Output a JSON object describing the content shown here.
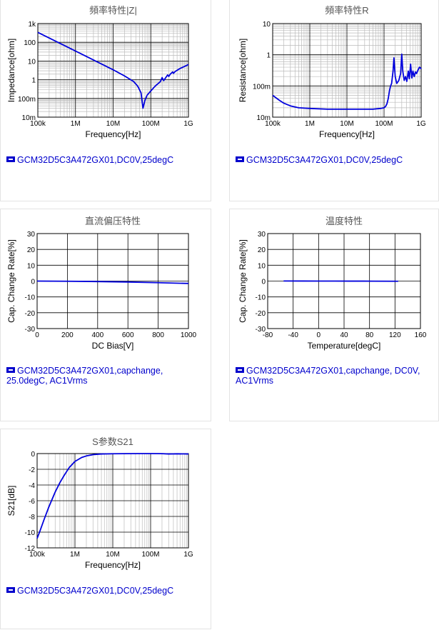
{
  "colors": {
    "series": "#0000dd",
    "grid_major": "#000000",
    "grid_minor": "#bbbbbb",
    "legend": "#0000cc"
  },
  "chart_data": [
    {
      "type": "line",
      "title": "頻率特性|Z|",
      "xlabel": "Frequency[Hz]",
      "ylabel": "Impedance[ohm]",
      "xscale": "log",
      "yscale": "log",
      "xlim": [
        100000,
        1000000000
      ],
      "ylim": [
        0.01,
        1000
      ],
      "xticks": [
        100000,
        1000000,
        10000000,
        100000000,
        1000000000
      ],
      "xticklabels": [
        "100k",
        "1M",
        "10M",
        "100M",
        "1G"
      ],
      "yticks": [
        0.01,
        0.1,
        1,
        10,
        100,
        1000
      ],
      "yticklabels": [
        "10m",
        "100m",
        "1",
        "10",
        "100",
        "1k"
      ],
      "grid": true,
      "legend": "GCM32D5C3A472GX01,DC0V,25degC",
      "series": [
        {
          "name": "GCM32D5C3A472GX01,DC0V,25degC",
          "x": [
            100000,
            200000,
            500000,
            1000000,
            2000000,
            5000000,
            10000000,
            20000000,
            35000000,
            45000000,
            55000000,
            62000000,
            70000000,
            80000000,
            100000000,
            130000000,
            180000000,
            200000000,
            220000000,
            250000000,
            280000000,
            300000000,
            330000000,
            380000000,
            400000000,
            450000000,
            500000000,
            600000000,
            700000000,
            850000000,
            1000000000
          ],
          "y": [
            340,
            170,
            68,
            34,
            17,
            6.8,
            3.4,
            1.6,
            0.8,
            0.45,
            0.2,
            0.03,
            0.08,
            0.15,
            0.25,
            0.45,
            0.8,
            1.3,
            0.9,
            1.3,
            1.8,
            1.5,
            2.0,
            2.6,
            2.2,
            2.8,
            3.2,
            4.0,
            4.6,
            5.5,
            6.5
          ]
        }
      ]
    },
    {
      "type": "line",
      "title": "頻率特性R",
      "xlabel": "Frequency[Hz]",
      "ylabel": "Resistance[ohm]",
      "xscale": "log",
      "yscale": "log",
      "xlim": [
        100000,
        1000000000
      ],
      "ylim": [
        0.01,
        10
      ],
      "xticks": [
        100000,
        1000000,
        10000000,
        100000000,
        1000000000
      ],
      "xticklabels": [
        "100k",
        "1M",
        "10M",
        "100M",
        "1G"
      ],
      "yticks": [
        0.01,
        0.1,
        1,
        10
      ],
      "yticklabels": [
        "10m",
        "100m",
        "1",
        "10"
      ],
      "grid": true,
      "legend": "GCM32D5C3A472GX01,DC0V,25degC",
      "series": [
        {
          "name": "GCM32D5C3A472GX01,DC0V,25degC",
          "x": [
            100000,
            150000,
            200000,
            300000,
            500000,
            1000000,
            3000000,
            10000000,
            50000000,
            80000000,
            100000000,
            110000000,
            120000000,
            130000000,
            140000000,
            150000000,
            160000000,
            175000000,
            185000000,
            200000000,
            220000000,
            250000000,
            280000000,
            300000000,
            320000000,
            350000000,
            380000000,
            410000000,
            450000000,
            480000000,
            520000000,
            560000000,
            600000000,
            650000000,
            700000000,
            750000000,
            800000000,
            850000000,
            900000000,
            950000000,
            1000000000
          ],
          "y": [
            0.05,
            0.035,
            0.028,
            0.023,
            0.02,
            0.019,
            0.018,
            0.018,
            0.018,
            0.019,
            0.02,
            0.022,
            0.027,
            0.04,
            0.07,
            0.1,
            0.12,
            0.3,
            0.8,
            0.2,
            0.12,
            0.15,
            0.25,
            1.05,
            0.3,
            0.15,
            0.2,
            0.14,
            0.3,
            0.17,
            0.5,
            0.18,
            0.3,
            0.2,
            0.28,
            0.25,
            0.3,
            0.35,
            0.4,
            0.38,
            0.35
          ]
        }
      ]
    },
    {
      "type": "line",
      "title": "直流偏压特性",
      "xlabel": "DC Bias[V]",
      "ylabel": "Cap. Change Rate[%]",
      "xlim": [
        0,
        1000
      ],
      "ylim": [
        -30,
        30
      ],
      "xticks": [
        0,
        200,
        400,
        600,
        800,
        1000
      ],
      "xticklabels": [
        "0",
        "200",
        "400",
        "600",
        "800",
        "1000"
      ],
      "yticks": [
        -30,
        -20,
        -10,
        0,
        10,
        20,
        30
      ],
      "yticklabels": [
        "-30",
        "-20",
        "-10",
        "0",
        "10",
        "20",
        "30"
      ],
      "grid": true,
      "legend": "GCM32D5C3A472GX01,capchange, 25.0degC, AC1Vrms",
      "series": [
        {
          "name": "GCM32D5C3A472GX01,capchange, 25.0degC, AC1Vrms",
          "x": [
            0,
            200,
            400,
            600,
            800,
            1000
          ],
          "y": [
            0,
            -0.1,
            -0.3,
            -0.6,
            -1.0,
            -1.5
          ]
        }
      ]
    },
    {
      "type": "line",
      "title": "温度特性",
      "xlabel": "Temperature[degC]",
      "ylabel": "Cap. Change Rate[%]",
      "xlim": [
        -80,
        160
      ],
      "ylim": [
        -30,
        30
      ],
      "xticks": [
        -80,
        -40,
        0,
        40,
        80,
        120,
        160
      ],
      "xticklabels": [
        "-80",
        "-40",
        "0",
        "40",
        "80",
        "120",
        "160"
      ],
      "yticks": [
        -30,
        -20,
        -10,
        0,
        10,
        20,
        30
      ],
      "yticklabels": [
        "-30",
        "-20",
        "-10",
        "0",
        "10",
        "20",
        "30"
      ],
      "grid": true,
      "legend": "GCM32D5C3A472GX01,capchange, DC0V, AC1Vrms",
      "series": [
        {
          "name": "GCM32D5C3A472GX01,capchange, DC0V, AC1Vrms",
          "x": [
            -55,
            -25,
            0,
            25,
            50,
            85,
            125
          ],
          "y": [
            0.05,
            0.03,
            0.01,
            0,
            -0.02,
            -0.05,
            -0.1
          ]
        }
      ]
    },
    {
      "type": "line",
      "title": "S参数S21",
      "xlabel": "Frequency[Hz]",
      "ylabel": "S21[dB]",
      "xscale": "log",
      "xlim": [
        100000,
        1000000000
      ],
      "ylim": [
        -12,
        0
      ],
      "xticks": [
        100000,
        1000000,
        10000000,
        100000000,
        1000000000
      ],
      "xticklabels": [
        "100k",
        "1M",
        "10M",
        "100M",
        "1G"
      ],
      "yticks": [
        -12,
        -10,
        -8,
        -6,
        -4,
        -2,
        0
      ],
      "yticklabels": [
        "-12",
        "-10",
        "-8",
        "-6",
        "-4",
        "-2",
        "0"
      ],
      "grid": true,
      "legend": "GCM32D5C3A472GX01,DC0V,25degC",
      "series": [
        {
          "name": "GCM32D5C3A472GX01,DC0V,25degC",
          "x": [
            100000,
            120000,
            150000,
            200000,
            300000,
            400000,
            500000,
            700000,
            1000000,
            1500000,
            2000000,
            3000000,
            5000000,
            10000000,
            20000000,
            50000000,
            100000000,
            200000000,
            300000000,
            500000000,
            1000000000
          ],
          "y": [
            -10.8,
            -9.8,
            -8.5,
            -6.9,
            -4.9,
            -3.7,
            -2.9,
            -1.8,
            -1.0,
            -0.5,
            -0.3,
            -0.14,
            -0.05,
            -0.02,
            -0.01,
            0,
            0,
            -0.01,
            -0.05,
            -0.03,
            -0.05
          ]
        }
      ]
    }
  ]
}
